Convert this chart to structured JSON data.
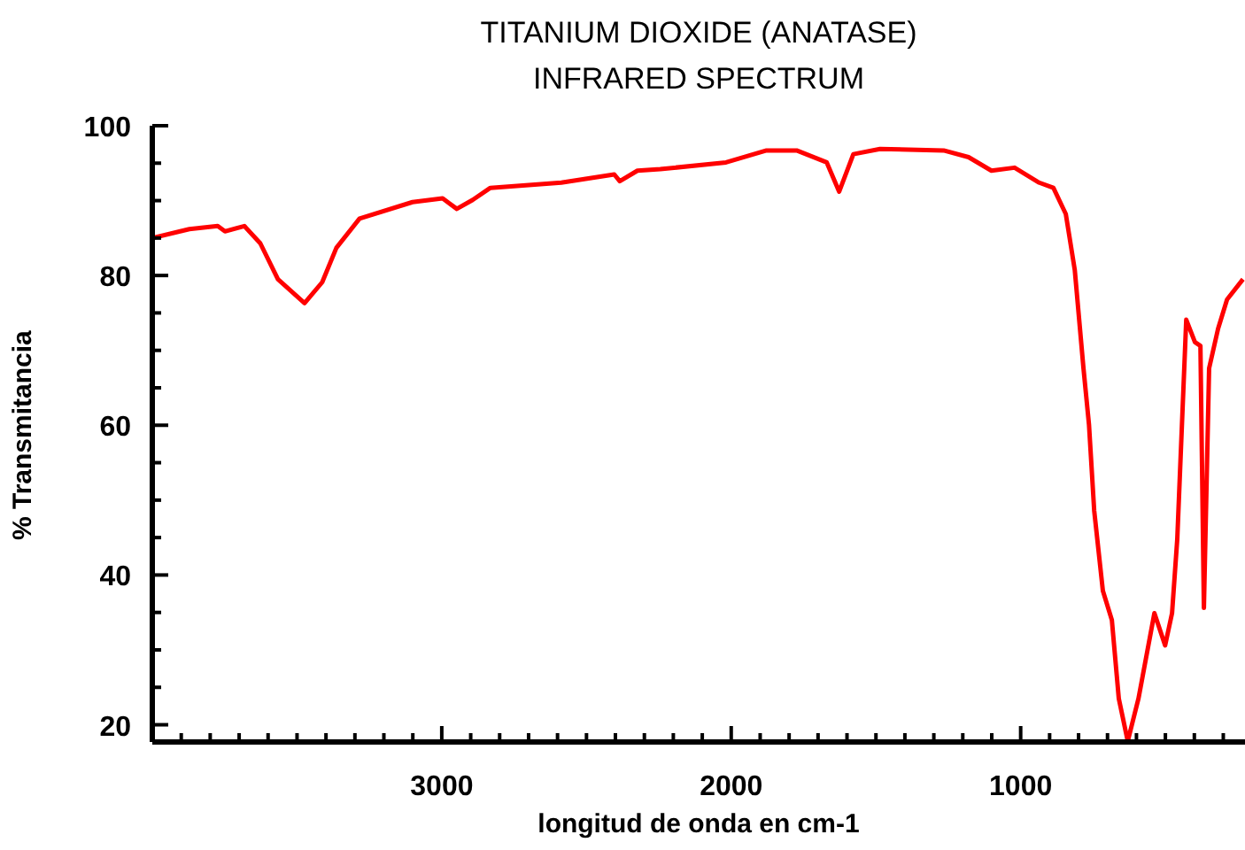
{
  "chart_data": {
    "type": "line",
    "title": "TITANIUM DIOXIDE (ANATASE)",
    "subtitle": "INFRARED SPECTRUM",
    "xlabel": "longitud de onda en cm-1",
    "ylabel": "%  Transmitancia",
    "xlim": [
      4000,
      225
    ],
    "ylim": [
      17.7,
      100
    ],
    "xticks": [
      {
        "value": 3900,
        "label": null
      },
      {
        "value": 3800,
        "label": null
      },
      {
        "value": 3700,
        "label": null
      },
      {
        "value": 3600,
        "label": null
      },
      {
        "value": 3500,
        "label": null
      },
      {
        "value": 3400,
        "label": null
      },
      {
        "value": 3300,
        "label": null
      },
      {
        "value": 3200,
        "label": null
      },
      {
        "value": 3100,
        "label": null
      },
      3000,
      {
        "value": 2900,
        "label": null
      },
      {
        "value": 2800,
        "label": null
      },
      {
        "value": 2700,
        "label": null
      },
      {
        "value": 2600,
        "label": null
      },
      {
        "value": 2500,
        "label": null
      },
      {
        "value": 2400,
        "label": null
      },
      {
        "value": 2300,
        "label": null
      },
      {
        "value": 2200,
        "label": null
      },
      {
        "value": 2100,
        "label": null
      },
      2000,
      {
        "value": 1900,
        "label": null
      },
      {
        "value": 1800,
        "label": null
      },
      {
        "value": 1700,
        "label": null
      },
      {
        "value": 1600,
        "label": null
      },
      {
        "value": 1500,
        "label": null
      },
      {
        "value": 1400,
        "label": null
      },
      {
        "value": 1300,
        "label": null
      },
      {
        "value": 1200,
        "label": null
      },
      {
        "value": 1100,
        "label": null
      },
      1000,
      {
        "value": 900,
        "label": null
      },
      {
        "value": 800,
        "label": null
      },
      {
        "value": 700,
        "label": null
      },
      {
        "value": 600,
        "label": null
      },
      {
        "value": 500,
        "label": null
      },
      {
        "value": 400,
        "label": null
      },
      {
        "value": 300,
        "label": null
      }
    ],
    "yticks": [
      20,
      {
        "value": 25,
        "label": null
      },
      {
        "value": 30,
        "label": null
      },
      {
        "value": 35,
        "label": null
      },
      40,
      {
        "value": 45,
        "label": null
      },
      {
        "value": 50,
        "label": null
      },
      {
        "value": 55,
        "label": null
      },
      60,
      {
        "value": 65,
        "label": null
      },
      {
        "value": 70,
        "label": null
      },
      {
        "value": 75,
        "label": null
      },
      80,
      {
        "value": 85,
        "label": null
      },
      {
        "value": 90,
        "label": null
      },
      {
        "value": 95,
        "label": null
      },
      100
    ],
    "grid": false,
    "legend": false,
    "marker": "none",
    "line_style": "solid",
    "x": [
      4000,
      3872,
      3774,
      3749,
      3682,
      3627,
      3566,
      3474,
      3413,
      3364,
      3284,
      3101,
      2997,
      2948,
      2893,
      2832,
      2587,
      2404,
      2385,
      2324,
      2245,
      2018,
      1878,
      1774,
      1670,
      1627,
      1578,
      1486,
      1266,
      1180,
      1101,
      1021,
      936,
      887,
      844,
      813,
      783,
      764,
      746,
      716,
      685,
      661,
      630,
      593,
      538,
      501,
      477,
      459,
      428,
      398,
      379,
      367,
      349,
      318,
      287,
      232
    ],
    "series": [
      {
        "color": "#ff0000",
        "values": [
          85.0,
          86.2,
          86.6,
          85.9,
          86.6,
          84.3,
          79.5,
          76.3,
          79.1,
          83.7,
          87.6,
          89.8,
          90.3,
          88.9,
          90.1,
          91.7,
          92.4,
          93.5,
          92.6,
          94.0,
          94.2,
          95.1,
          96.7,
          96.7,
          95.1,
          91.2,
          96.2,
          96.9,
          96.7,
          95.8,
          94.0,
          94.4,
          92.4,
          91.7,
          88.2,
          80.7,
          67.6,
          60.1,
          48.6,
          37.9,
          34.0,
          23.5,
          17.8,
          23.5,
          34.9,
          30.6,
          34.9,
          44.8,
          74.1,
          71.1,
          70.6,
          35.6,
          67.6,
          72.9,
          76.8,
          79.5
        ]
      }
    ]
  }
}
